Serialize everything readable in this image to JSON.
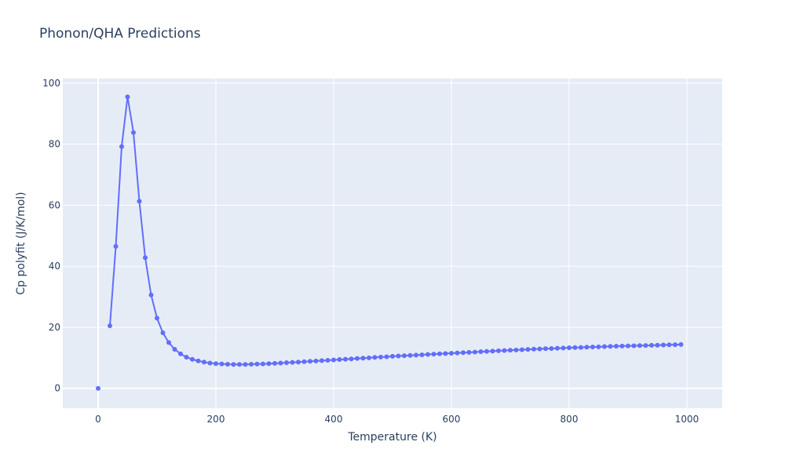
{
  "chart_data": {
    "type": "line",
    "title": "Phonon/QHA Predictions",
    "xlabel": "Temperature (K)",
    "ylabel": "Cp polyfit (J/K/mol)",
    "xlim": [
      -60,
      1060
    ],
    "ylim": [
      -6.5,
      101.5
    ],
    "xticks": [
      0,
      200,
      400,
      600,
      800,
      1000
    ],
    "xtick_labels": [
      "0",
      "200",
      "400",
      "600",
      "800",
      "1000"
    ],
    "yticks": [
      0,
      20,
      40,
      60,
      80,
      100
    ],
    "ytick_labels": [
      "0",
      "20",
      "40",
      "60",
      "80",
      "100"
    ],
    "grid": true,
    "mode": "lines+markers",
    "colors": {
      "series": "#636efa",
      "plot_bg": "#e5ecf6",
      "grid": "#ffffff",
      "text": "#2a3f5f"
    },
    "series": [
      {
        "x": [
          0,
          20,
          30,
          40,
          50,
          60,
          70,
          80,
          90,
          100,
          110,
          120,
          130,
          140,
          150,
          160,
          170,
          180,
          190,
          200,
          210,
          220,
          230,
          240,
          250,
          260,
          270,
          280,
          290,
          300,
          310,
          320,
          330,
          340,
          350,
          360,
          370,
          380,
          390,
          400,
          410,
          420,
          430,
          440,
          450,
          460,
          470,
          480,
          490,
          500,
          510,
          520,
          530,
          540,
          550,
          560,
          570,
          580,
          590,
          600,
          610,
          620,
          630,
          640,
          650,
          660,
          670,
          680,
          690,
          700,
          710,
          720,
          730,
          740,
          750,
          760,
          770,
          780,
          790,
          800,
          810,
          820,
          830,
          840,
          850,
          860,
          870,
          880,
          890,
          900,
          910,
          920,
          930,
          940,
          950,
          960,
          970,
          980,
          990
        ],
        "y": [
          0,
          20.5,
          46.5,
          79.2,
          95.5,
          83.8,
          61.3,
          42.8,
          30.6,
          23.0,
          18.2,
          15.0,
          12.8,
          11.3,
          10.2,
          9.5,
          9.0,
          8.6,
          8.3,
          8.1,
          8.0,
          7.9,
          7.85,
          7.85,
          7.85,
          7.9,
          7.95,
          8.0,
          8.1,
          8.2,
          8.3,
          8.4,
          8.5,
          8.6,
          8.75,
          8.85,
          8.95,
          9.1,
          9.2,
          9.3,
          9.45,
          9.55,
          9.65,
          9.8,
          9.9,
          10.0,
          10.15,
          10.25,
          10.35,
          10.5,
          10.6,
          10.7,
          10.8,
          10.9,
          11.0,
          11.1,
          11.2,
          11.3,
          11.4,
          11.5,
          11.6,
          11.7,
          11.8,
          11.9,
          12.0,
          12.1,
          12.2,
          12.3,
          12.4,
          12.5,
          12.55,
          12.65,
          12.75,
          12.85,
          12.9,
          13.0,
          13.05,
          13.15,
          13.2,
          13.3,
          13.35,
          13.4,
          13.5,
          13.55,
          13.6,
          13.7,
          13.75,
          13.8,
          13.85,
          13.9,
          13.95,
          14.0,
          14.05,
          14.1,
          14.15,
          14.2,
          14.25,
          14.3,
          14.35
        ]
      }
    ]
  }
}
